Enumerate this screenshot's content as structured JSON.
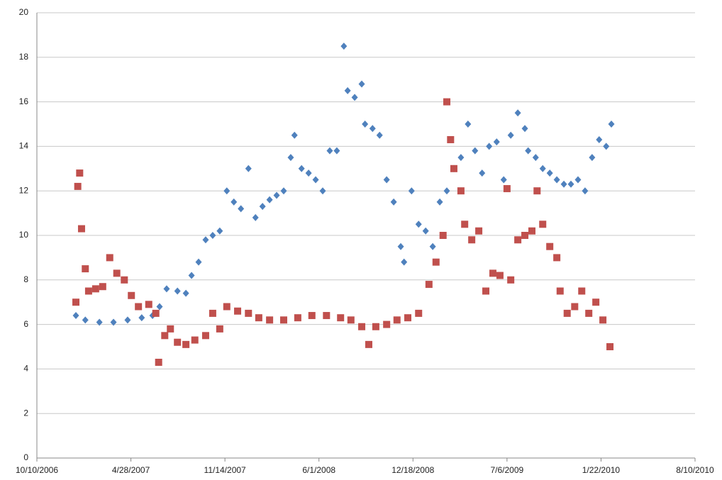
{
  "chart_data": {
    "type": "scatter",
    "xlim": [
      39000,
      40400
    ],
    "xticks": [
      {
        "value": 39000,
        "label": "10/10/2006"
      },
      {
        "value": 39200,
        "label": "4/28/2007"
      },
      {
        "value": 39400,
        "label": "11/14/2007"
      },
      {
        "value": 39600,
        "label": "6/1/2008"
      },
      {
        "value": 39800,
        "label": "12/18/2008"
      },
      {
        "value": 40000,
        "label": "7/6/2009"
      },
      {
        "value": 40200,
        "label": "1/22/2010"
      },
      {
        "value": 40400,
        "label": "8/10/2010"
      }
    ],
    "ylim": [
      0,
      20
    ],
    "yticks": [
      0,
      2,
      4,
      6,
      8,
      10,
      12,
      14,
      16,
      18,
      20
    ],
    "grid": true,
    "series": [
      {
        "color": "#4f81bd",
        "marker": "diamond",
        "x": [
          39083,
          39103,
          39133,
          39163,
          39193,
          39223,
          39246,
          39261,
          39276,
          39299,
          39317,
          39329,
          39344,
          39359,
          39374,
          39389,
          39404,
          39419,
          39434,
          39450,
          39465,
          39480,
          39495,
          39510,
          39525,
          39540,
          39548,
          39563,
          39578,
          39593,
          39608,
          39623,
          39638,
          39653,
          39661,
          39676,
          39691,
          39698,
          39714,
          39729,
          39744,
          39759,
          39774,
          39781,
          39797,
          39812,
          39827,
          39842,
          39857,
          39872,
          39887,
          39902,
          39917,
          39932,
          39947,
          39962,
          39978,
          39993,
          40008,
          40023,
          40038,
          40045,
          40061,
          40076,
          40091,
          40106,
          40121,
          40136,
          40151,
          40166,
          40181,
          40196,
          40211,
          40222
        ],
        "values": [
          6.4,
          6.2,
          6.1,
          6.1,
          6.2,
          6.3,
          6.4,
          6.8,
          7.6,
          7.5,
          7.4,
          8.2,
          8.8,
          9.8,
          10.0,
          10.2,
          12.0,
          11.5,
          11.2,
          13.0,
          10.8,
          11.3,
          11.6,
          11.8,
          12.0,
          13.5,
          14.5,
          13.0,
          12.8,
          12.5,
          12.0,
          13.8,
          13.8,
          18.5,
          16.5,
          16.2,
          16.8,
          15.0,
          14.8,
          14.5,
          12.5,
          11.5,
          9.5,
          8.8,
          12.0,
          10.5,
          10.2,
          9.5,
          11.5,
          12.0,
          13.0,
          13.5,
          15.0,
          13.8,
          12.8,
          14.0,
          14.2,
          12.5,
          14.5,
          15.5,
          14.8,
          13.8,
          13.5,
          13.0,
          12.8,
          12.5,
          12.3,
          12.3,
          12.5,
          12.0,
          13.5,
          14.3,
          14.0,
          15.0
        ]
      },
      {
        "color": "#c0504d",
        "marker": "square",
        "x": [
          39083,
          39087,
          39091,
          39095,
          39103,
          39110,
          39125,
          39140,
          39155,
          39170,
          39186,
          39201,
          39216,
          39238,
          39253,
          39259,
          39272,
          39284,
          39299,
          39317,
          39336,
          39359,
          39374,
          39389,
          39404,
          39427,
          39450,
          39472,
          39495,
          39525,
          39555,
          39585,
          39616,
          39646,
          39668,
          39691,
          39706,
          39721,
          39744,
          39766,
          39789,
          39812,
          39834,
          39849,
          39864,
          39872,
          39880,
          39887,
          39902,
          39910,
          39925,
          39940,
          39955,
          39970,
          39985,
          40000,
          40008,
          40023,
          40038,
          40053,
          40064,
          40076,
          40091,
          40106,
          40113,
          40128,
          40144,
          40159,
          40174,
          40189,
          40204,
          40219
        ],
        "values": [
          7.0,
          12.2,
          12.8,
          10.3,
          8.5,
          7.5,
          7.6,
          7.7,
          9.0,
          8.3,
          8.0,
          7.3,
          6.8,
          6.9,
          6.5,
          4.3,
          5.5,
          5.8,
          5.2,
          5.1,
          5.3,
          5.5,
          6.5,
          5.8,
          6.8,
          6.6,
          6.5,
          6.3,
          6.2,
          6.2,
          6.3,
          6.4,
          6.4,
          6.3,
          6.2,
          5.9,
          5.1,
          5.9,
          6.0,
          6.2,
          6.3,
          6.5,
          7.8,
          8.8,
          10.0,
          16.0,
          14.3,
          13.0,
          12.0,
          10.5,
          9.8,
          10.2,
          7.5,
          8.3,
          8.2,
          12.1,
          8.0,
          9.8,
          10.0,
          10.2,
          12.0,
          10.5,
          9.5,
          9.0,
          7.5,
          6.5,
          6.8,
          7.5,
          6.5,
          7.0,
          6.2,
          5.0
        ]
      }
    ]
  }
}
